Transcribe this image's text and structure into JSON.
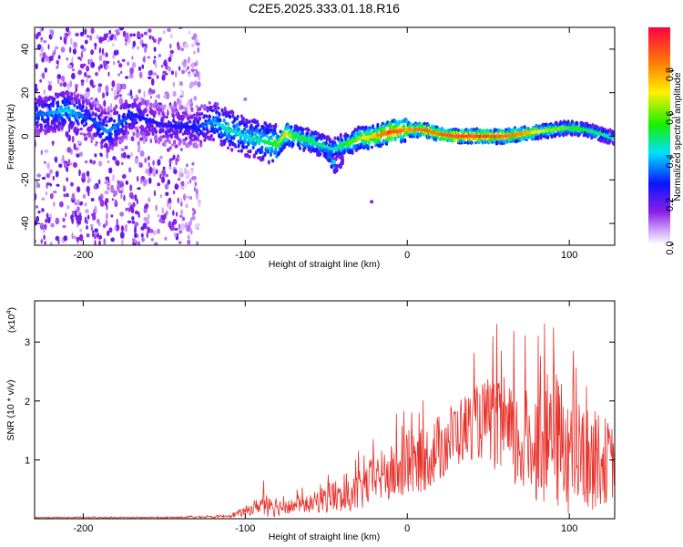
{
  "title": "C2E5.2025.333.01.18.R16",
  "chart_data": [
    {
      "type": "heatmap",
      "name": "spectrogram",
      "xlabel": "Height of straight line (km)",
      "ylabel": "Frequency (Hz)",
      "xlim": [
        -230,
        128
      ],
      "ylim": [
        -50,
        50
      ],
      "xticks": [
        -200,
        -100,
        0,
        100
      ],
      "yticks": [
        -40,
        -20,
        0,
        20,
        40
      ],
      "colorbar": {
        "label": "Normalized spectral amplitude",
        "range": [
          0.0,
          1.0
        ],
        "ticks": [
          0.0,
          0.2,
          0.4,
          0.6,
          0.8
        ],
        "tick_labels": [
          "0.0",
          "0.2",
          "0.4",
          "0.6",
          "0.8"
        ]
      },
      "ridge": {
        "description": "dominant frequency track (Hz) with normalized amplitude",
        "height_km": [
          -225,
          -210,
          -195,
          -185,
          -170,
          -150,
          -130,
          -120,
          -110,
          -100,
          -90,
          -80,
          -75,
          -70,
          -60,
          -50,
          -45,
          -40,
          -35,
          -30,
          -20,
          -10,
          0,
          10,
          20,
          30,
          40,
          50,
          60,
          70,
          80,
          90,
          100,
          110,
          120,
          128
        ],
        "freq_hz": [
          10,
          12,
          8,
          2,
          10,
          5,
          4,
          7,
          3,
          0,
          -2,
          -4,
          1,
          0,
          -2,
          -5,
          -6,
          -4,
          -3,
          -1,
          0,
          2,
          3,
          3,
          1,
          0,
          0,
          0,
          0,
          1,
          2,
          3,
          4,
          3,
          1,
          -1
        ],
        "amplitude": [
          0.35,
          0.45,
          0.3,
          0.4,
          0.3,
          0.25,
          0.3,
          0.4,
          0.5,
          0.45,
          0.5,
          0.6,
          0.8,
          0.6,
          0.55,
          0.5,
          0.45,
          0.55,
          0.6,
          0.65,
          0.8,
          0.95,
          0.85,
          0.9,
          0.9,
          0.95,
          0.95,
          0.95,
          0.9,
          0.85,
          0.75,
          0.65,
          0.6,
          0.55,
          0.5,
          0.45
        ]
      },
      "side_feature": {
        "description": "lower branch near -45 km",
        "height_km": [
          -50,
          -48,
          -46,
          -44,
          -42,
          -40
        ],
        "freq_hz": [
          -8,
          -10,
          -13,
          -15,
          -14,
          -11
        ],
        "amplitude": [
          0.35,
          0.4,
          0.45,
          0.3,
          0.25,
          0.2
        ]
      },
      "isolated_points": [
        {
          "height_km": -22,
          "freq_hz": -30,
          "amplitude": 0.15
        },
        {
          "height_km": -100,
          "freq_hz": 17,
          "amplitude": 0.1
        }
      ],
      "noise_region": {
        "x_from": -230,
        "x_to": -128,
        "amplitude_range": [
          0.05,
          0.2
        ]
      }
    },
    {
      "type": "line",
      "name": "snr",
      "xlabel": "Height of straight line (km)",
      "ylabel": "SNR (10 * v/v)",
      "scale_label": "(x10",
      "scale_exp": "4",
      "scale_close": ")",
      "xlim": [
        -230,
        128
      ],
      "ylim": [
        0,
        3.7
      ],
      "xticks": [
        -200,
        -100,
        0,
        100
      ],
      "yticks": [
        1,
        2,
        3
      ],
      "color": "#e8302a",
      "envelope": {
        "description": "approximate SNR level (x10^4) vs height; signal fluctuates strongly around this level",
        "x": [
          -230,
          -150,
          -120,
          -110,
          -100,
          -90,
          -85,
          -80,
          -70,
          -60,
          -50,
          -45,
          -40,
          -30,
          -20,
          -10,
          0,
          10,
          20,
          30,
          40,
          50,
          60,
          70,
          80,
          90,
          100,
          110,
          120,
          128
        ],
        "mean": [
          0.02,
          0.02,
          0.03,
          0.05,
          0.12,
          0.25,
          0.3,
          0.2,
          0.22,
          0.25,
          0.35,
          0.4,
          0.3,
          0.45,
          0.7,
          0.75,
          0.85,
          1.0,
          1.2,
          1.45,
          1.6,
          1.7,
          1.4,
          1.25,
          1.3,
          1.35,
          1.15,
          1.0,
          1.0,
          0.95
        ],
        "spread": [
          0.01,
          0.01,
          0.02,
          0.03,
          0.08,
          0.15,
          0.3,
          0.15,
          0.12,
          0.15,
          0.25,
          0.3,
          0.25,
          0.35,
          0.4,
          0.5,
          0.5,
          0.55,
          0.6,
          0.6,
          0.6,
          0.7,
          0.9,
          0.9,
          1.0,
          1.2,
          1.1,
          0.9,
          0.8,
          0.6
        ]
      }
    }
  ]
}
